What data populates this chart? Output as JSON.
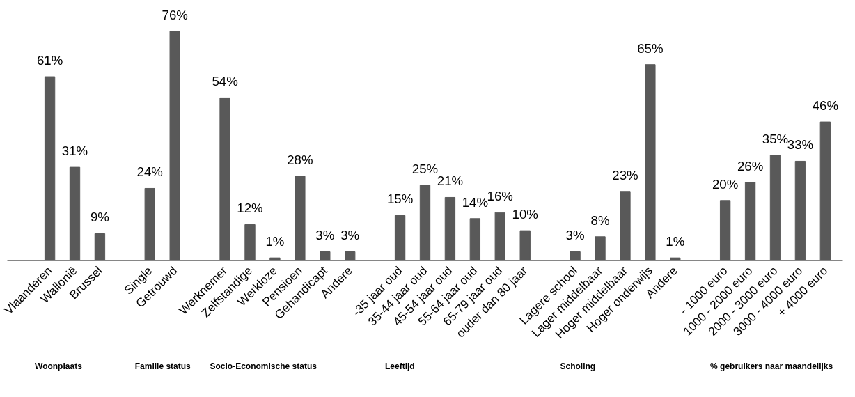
{
  "chart_data": {
    "type": "bar",
    "categories": [
      "Vlaanderen",
      "Wallonië",
      "Brussel",
      null,
      "Single",
      "Getrouwd",
      null,
      "Werknemer",
      "Zelfstandige",
      "Werkloze",
      "Pensioen",
      "Gehandicapt",
      "Andere",
      null,
      "-35 jaar oud",
      "35-44 jaar oud",
      "45-54 jaar oud",
      "55-64 jaar oud",
      "65-79 jaar oud",
      "ouder dan 80 jaar",
      null,
      "Lagere school",
      "Lager middelbaar",
      "Hoger middelbaar",
      "Hoger onderwijs",
      "Andere",
      null,
      "- 1000 euro",
      "1000 - 2000 euro",
      "2000 - 3000 euro",
      "3000 - 4000 euro",
      "+ 4000 euro"
    ],
    "values": [
      61,
      31,
      9,
      null,
      24,
      76,
      null,
      54,
      12,
      1,
      28,
      3,
      3,
      null,
      15,
      25,
      21,
      14,
      16,
      10,
      null,
      3,
      8,
      23,
      65,
      1,
      null,
      20,
      26,
      35,
      33,
      46
    ],
    "value_labels": [
      "61%",
      "31%",
      "9%",
      null,
      "24%",
      "76%",
      null,
      "54%",
      "12%",
      "1%",
      "28%",
      "3%",
      "3%",
      null,
      "15%",
      "25%",
      "21%",
      "14%",
      "16%",
      "10%",
      null,
      "3%",
      "8%",
      "23%",
      "65%",
      "1%",
      null,
      "20%",
      "26%",
      "35%",
      "33%",
      "46%"
    ],
    "color": "#595959",
    "annotations": [
      "Woonplaats",
      "Familie status",
      "Socio-Economische status",
      "Leeftijd",
      "Scholing",
      "% gebruikers  naar maandelijks"
    ],
    "grid": false
  }
}
